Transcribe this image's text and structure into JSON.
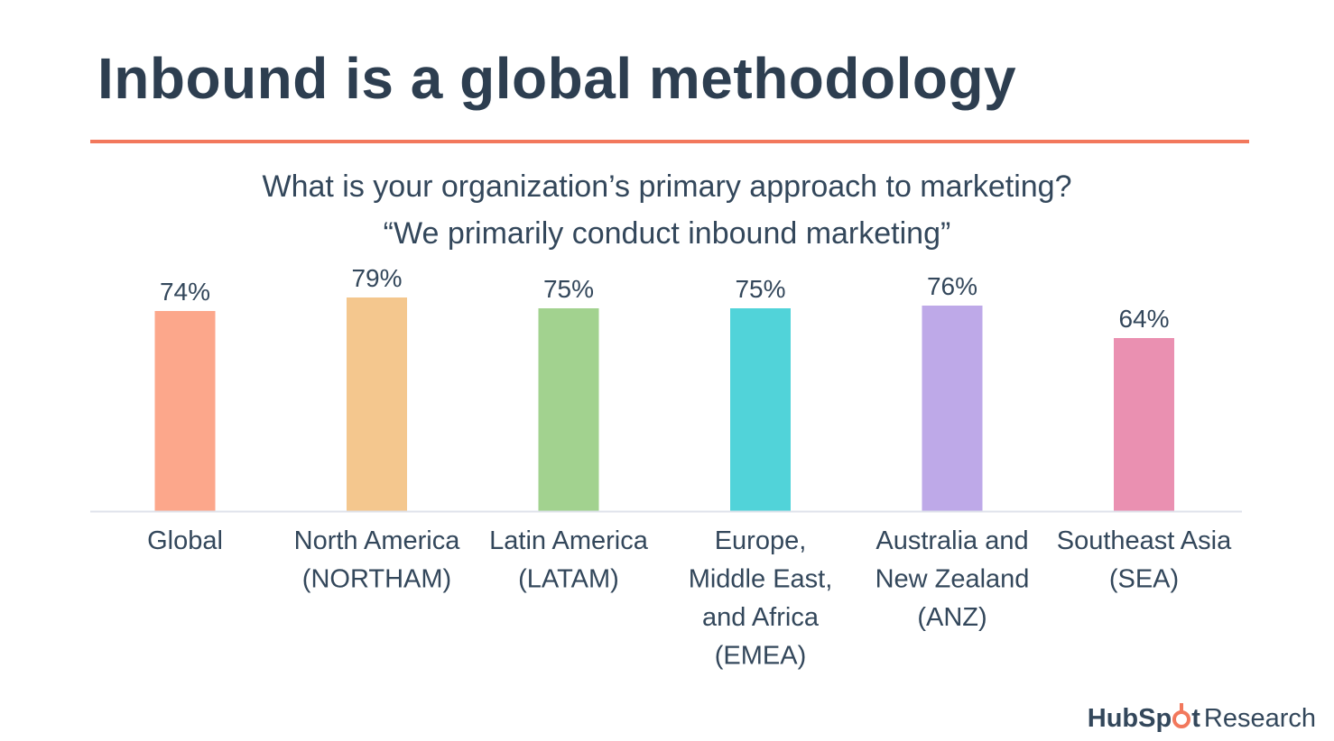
{
  "slide": {
    "title": "Inbound is a global methodology",
    "question_line1": "What is your organization’s primary approach to marketing?",
    "question_line2": "“We primarily conduct inbound marketing”"
  },
  "chart_data": {
    "type": "bar",
    "title": "What is your organization’s primary approach to marketing? “We primarily conduct inbound marketing”",
    "xlabel": "",
    "ylabel": "",
    "unit": "%",
    "ylim": [
      0,
      100
    ],
    "grid": false,
    "legend": "none",
    "categories": [
      [
        "Global"
      ],
      [
        "North America",
        "(NORTHAM)"
      ],
      [
        "Latin America",
        "(LATAM)"
      ],
      [
        "Europe,",
        "Middle East,",
        "and Africa",
        "(EMEA)"
      ],
      [
        "Australia and",
        "New Zealand",
        "(ANZ)"
      ],
      [
        "Southeast Asia",
        "(SEA)"
      ]
    ],
    "values": [
      74,
      79,
      75,
      75,
      76,
      64
    ],
    "value_labels": [
      "74%",
      "79%",
      "75%",
      "75%",
      "76%",
      "64%"
    ],
    "colors": [
      "#fca78b",
      "#f4c78e",
      "#a2d28f",
      "#51d3d9",
      "#bea9e8",
      "#ea90b1"
    ],
    "baseline_color": "#dfe3eb"
  },
  "brand": {
    "name_part1": "HubSp",
    "name_part2": "t",
    "suffix": "Research",
    "icon": "sprocket-icon",
    "accent": "#f2785c"
  }
}
